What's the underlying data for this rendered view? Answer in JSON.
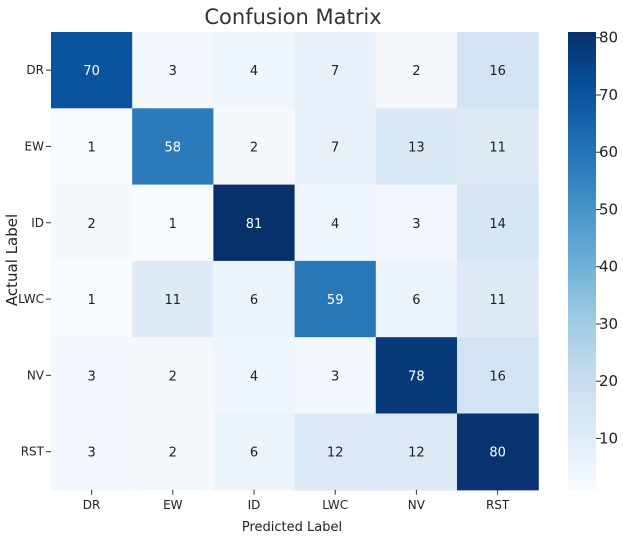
{
  "chart_data": {
    "type": "heatmap",
    "title": "Confusion Matrix",
    "xlabel": "Predicted Label",
    "ylabel": "Actual Label",
    "x_categories": [
      "DR",
      "EW",
      "ID",
      "LWC",
      "NV",
      "RST"
    ],
    "y_categories": [
      "DR",
      "EW",
      "ID",
      "LWC",
      "NV",
      "RST"
    ],
    "values": [
      [
        70,
        3,
        4,
        7,
        2,
        16
      ],
      [
        1,
        58,
        2,
        7,
        13,
        11
      ],
      [
        2,
        1,
        81,
        4,
        3,
        14
      ],
      [
        1,
        11,
        6,
        59,
        6,
        11
      ],
      [
        3,
        2,
        4,
        3,
        78,
        16
      ],
      [
        3,
        2,
        6,
        12,
        12,
        80
      ]
    ],
    "colorbar": {
      "min": 1,
      "max": 81,
      "ticks": [
        10,
        20,
        30,
        40,
        50,
        60,
        70,
        80
      ],
      "colormap": "Blues",
      "colors": [
        "#f7fbff",
        "#deebf7",
        "#c6dbef",
        "#9ecae1",
        "#6baed6",
        "#4292c6",
        "#2171b5",
        "#08519c",
        "#08306b"
      ]
    },
    "light_text_color": "#ffffff",
    "dark_text_color": "#222222"
  }
}
